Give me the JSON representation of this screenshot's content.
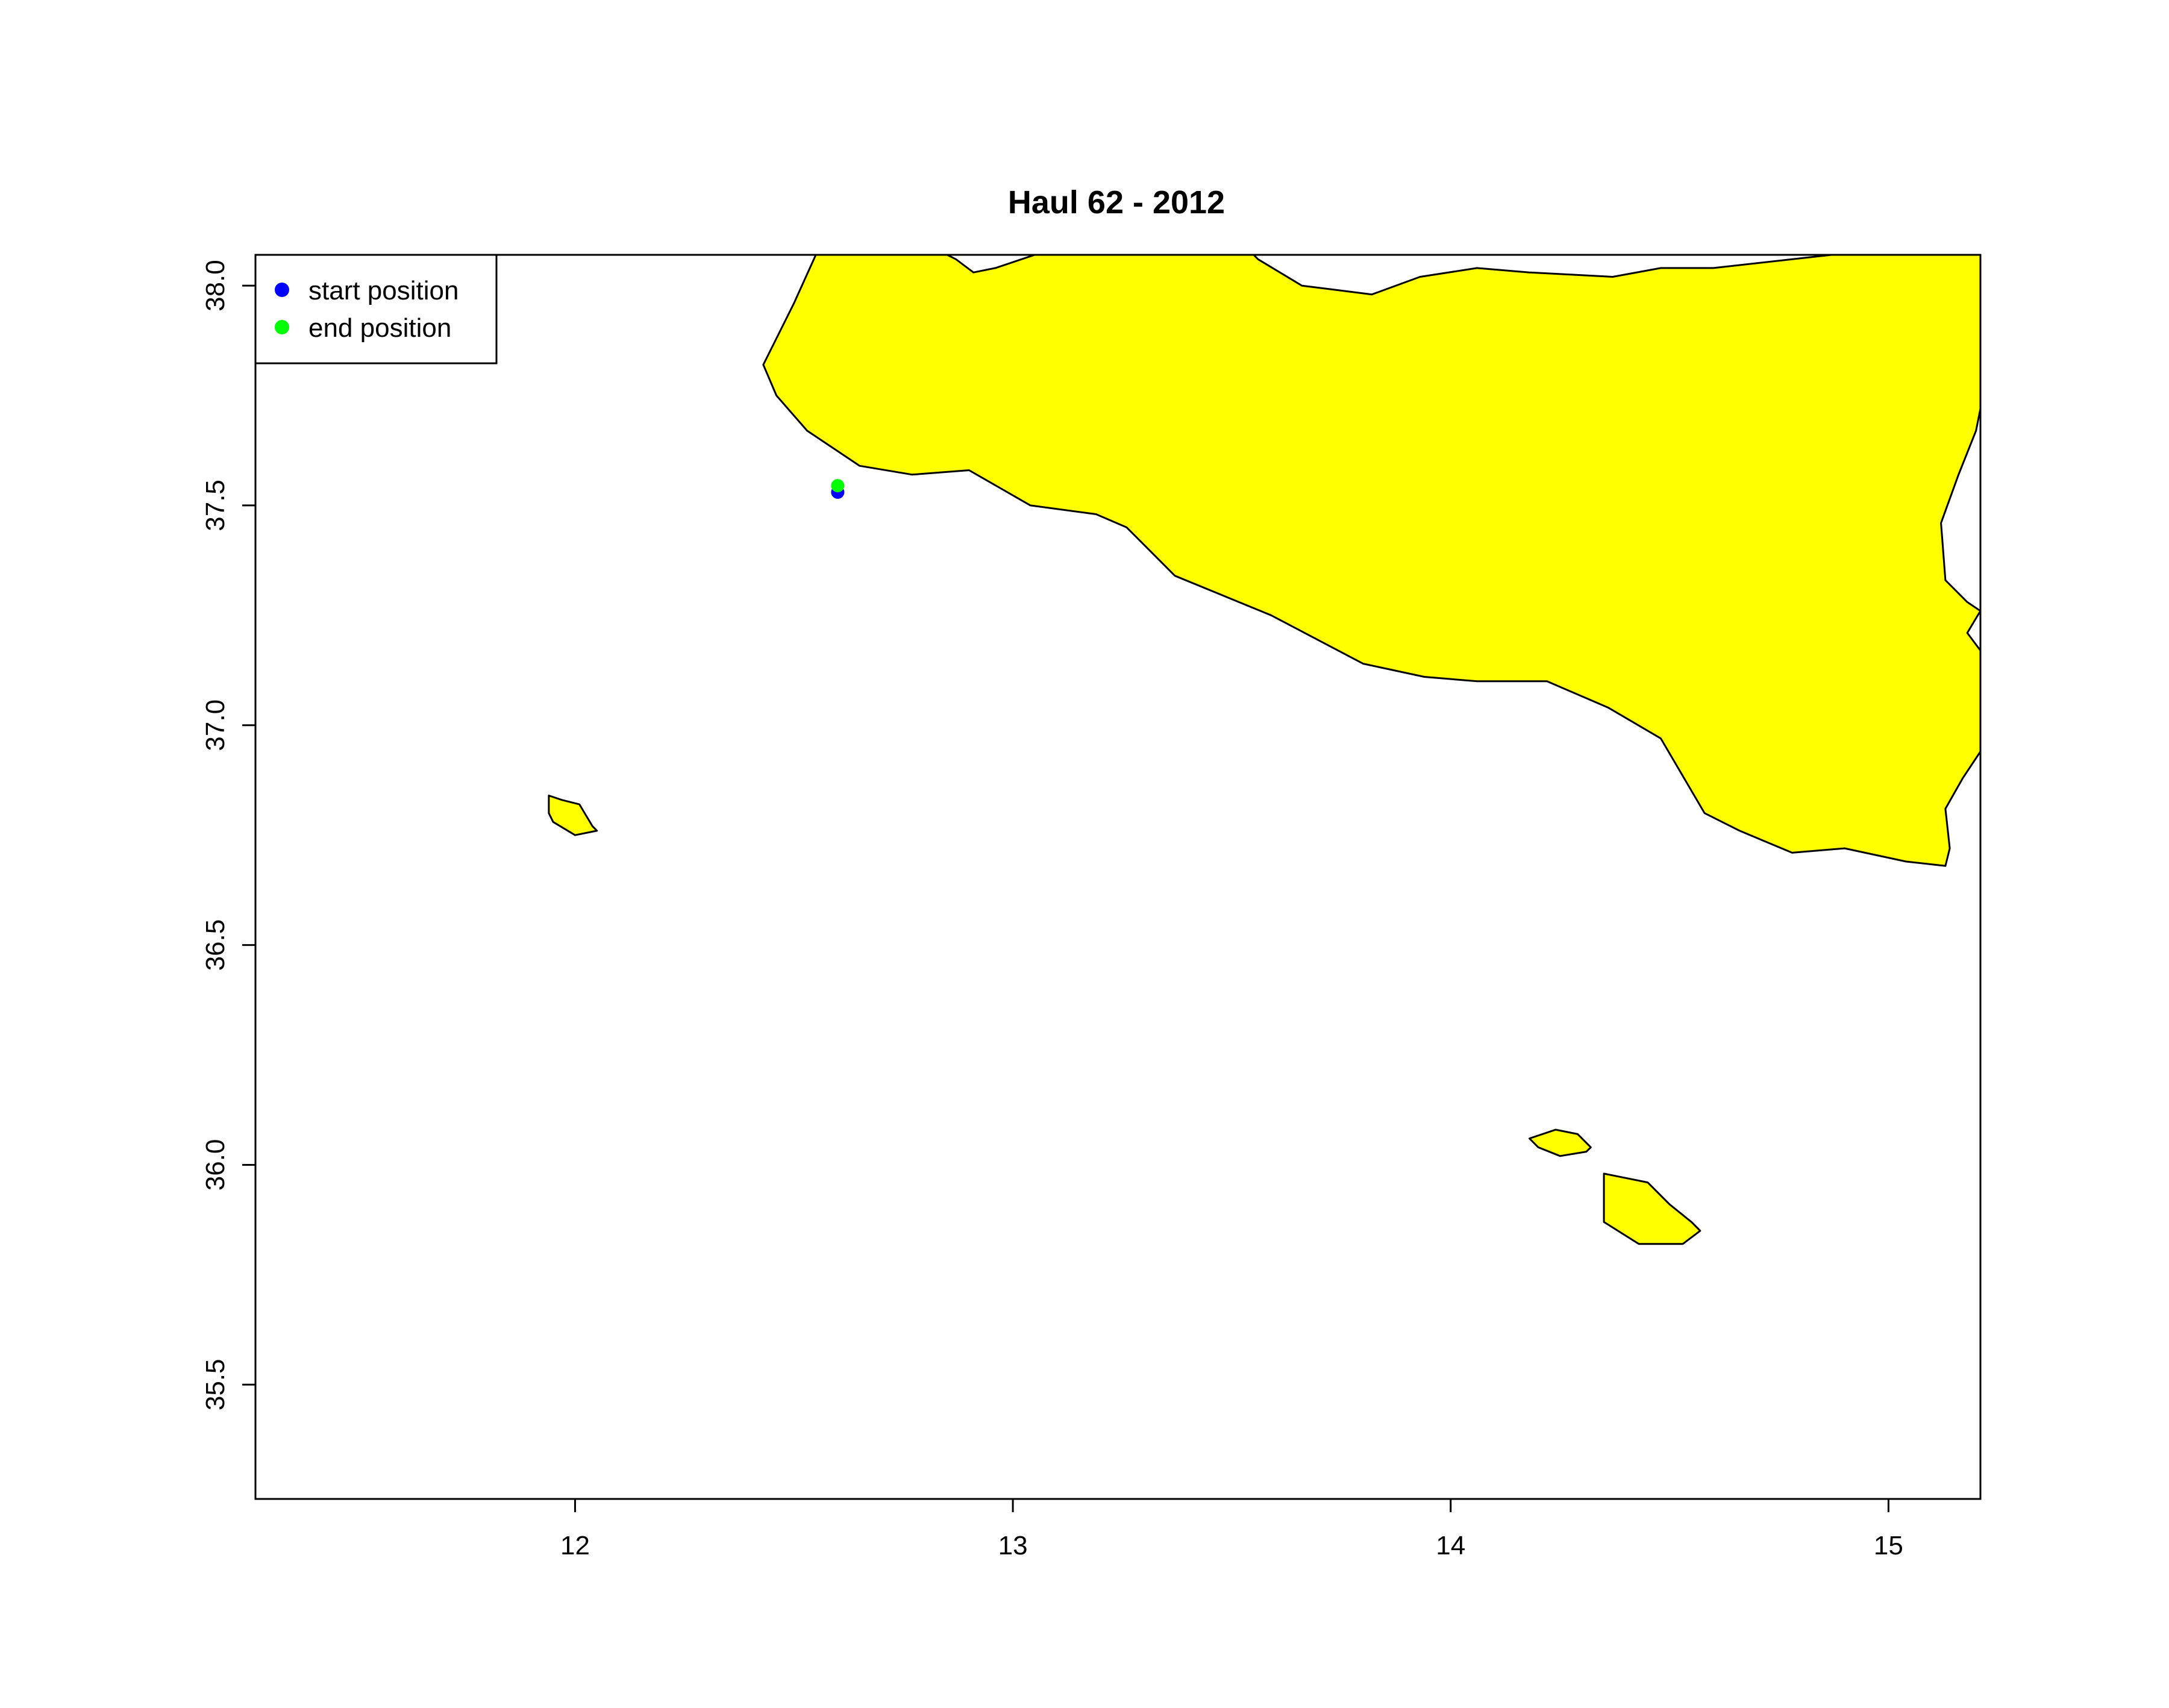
{
  "title": "Haul 62 - 2012",
  "colors": {
    "land": "#ffff00",
    "start": "#0000ff",
    "end": "#00ff00",
    "outline": "#000000"
  },
  "map": {
    "xlim": [
      11.27,
      15.21
    ],
    "ylim": [
      35.24,
      38.07
    ],
    "x_ticks": [
      12,
      13,
      14,
      15
    ],
    "y_ticks": [
      35.5,
      36.0,
      36.5,
      37.0,
      37.5,
      38.0
    ],
    "x_tick_labels": [
      "12",
      "13",
      "14",
      "15"
    ],
    "y_tick_labels": [
      "35.5",
      "36.0",
      "36.5",
      "37.0",
      "37.5",
      "38.0"
    ],
    "legend_position": "top-left"
  },
  "legend": {
    "items": [
      {
        "label": "start position",
        "color": "#0000ff"
      },
      {
        "label": "end position",
        "color": "#00ff00"
      }
    ]
  },
  "chart_data": {
    "type": "scatter",
    "title": "Haul 62 - 2012",
    "xlim": [
      11.27,
      15.21
    ],
    "ylim": [
      35.24,
      38.07
    ],
    "grid": false,
    "legend": "top-left",
    "series": [
      {
        "name": "start position",
        "color": "#0000ff",
        "points": [
          [
            12.6,
            37.53
          ]
        ]
      },
      {
        "name": "end position",
        "color": "#00ff00",
        "points": [
          [
            12.6,
            37.545
          ]
        ]
      }
    ],
    "land_polygons": [
      {
        "name": "sicily",
        "coords": [
          [
            12.55,
            38.07
          ],
          [
            12.5,
            37.96
          ],
          [
            12.43,
            37.82
          ],
          [
            12.46,
            37.75
          ],
          [
            12.53,
            37.67
          ],
          [
            12.65,
            37.59
          ],
          [
            12.77,
            37.57
          ],
          [
            12.9,
            37.58
          ],
          [
            13.04,
            37.5
          ],
          [
            13.19,
            37.48
          ],
          [
            13.26,
            37.45
          ],
          [
            13.37,
            37.34
          ],
          [
            13.59,
            37.25
          ],
          [
            13.8,
            37.14
          ],
          [
            13.94,
            37.11
          ],
          [
            14.06,
            37.1
          ],
          [
            14.22,
            37.1
          ],
          [
            14.36,
            37.04
          ],
          [
            14.48,
            36.97
          ],
          [
            14.58,
            36.8
          ],
          [
            14.66,
            36.76
          ],
          [
            14.78,
            36.71
          ],
          [
            14.9,
            36.72
          ],
          [
            15.04,
            36.69
          ],
          [
            15.13,
            36.68
          ],
          [
            15.14,
            36.72
          ],
          [
            15.13,
            36.81
          ],
          [
            15.17,
            36.88
          ],
          [
            15.21,
            36.94
          ],
          [
            15.21,
            37.17
          ],
          [
            15.18,
            37.21
          ],
          [
            15.21,
            37.26
          ],
          [
            15.18,
            37.28
          ],
          [
            15.13,
            37.33
          ],
          [
            15.12,
            37.46
          ],
          [
            15.16,
            37.57
          ],
          [
            15.2,
            37.67
          ],
          [
            15.21,
            37.72
          ],
          [
            15.21,
            38.07
          ],
          [
            14.87,
            38.07
          ],
          [
            14.6,
            38.04
          ],
          [
            14.48,
            38.04
          ],
          [
            14.37,
            38.02
          ],
          [
            14.18,
            38.03
          ],
          [
            14.06,
            38.04
          ],
          [
            13.93,
            38.02
          ],
          [
            13.82,
            37.98
          ],
          [
            13.74,
            37.99
          ],
          [
            13.66,
            38.0
          ],
          [
            13.56,
            38.06
          ],
          [
            13.55,
            38.07
          ],
          [
            13.05,
            38.07
          ],
          [
            12.96,
            38.04
          ],
          [
            12.91,
            38.03
          ],
          [
            12.87,
            38.06
          ],
          [
            12.85,
            38.07
          ]
        ]
      },
      {
        "name": "marettimo",
        "coords": [
          [
            11.94,
            36.84
          ],
          [
            11.97,
            36.83
          ],
          [
            12.01,
            36.82
          ],
          [
            12.04,
            36.77
          ],
          [
            12.05,
            36.76
          ],
          [
            12.0,
            36.75
          ],
          [
            11.95,
            36.78
          ],
          [
            11.94,
            36.8
          ]
        ]
      },
      {
        "name": "gozo",
        "coords": [
          [
            14.18,
            36.06
          ],
          [
            14.24,
            36.08
          ],
          [
            14.29,
            36.07
          ],
          [
            14.32,
            36.04
          ],
          [
            14.31,
            36.03
          ],
          [
            14.25,
            36.02
          ],
          [
            14.2,
            36.04
          ]
        ]
      },
      {
        "name": "malta",
        "coords": [
          [
            14.35,
            35.98
          ],
          [
            14.45,
            35.96
          ],
          [
            14.5,
            35.91
          ],
          [
            14.55,
            35.87
          ],
          [
            14.57,
            35.85
          ],
          [
            14.53,
            35.82
          ],
          [
            14.43,
            35.82
          ],
          [
            14.35,
            35.87
          ]
        ]
      }
    ]
  }
}
